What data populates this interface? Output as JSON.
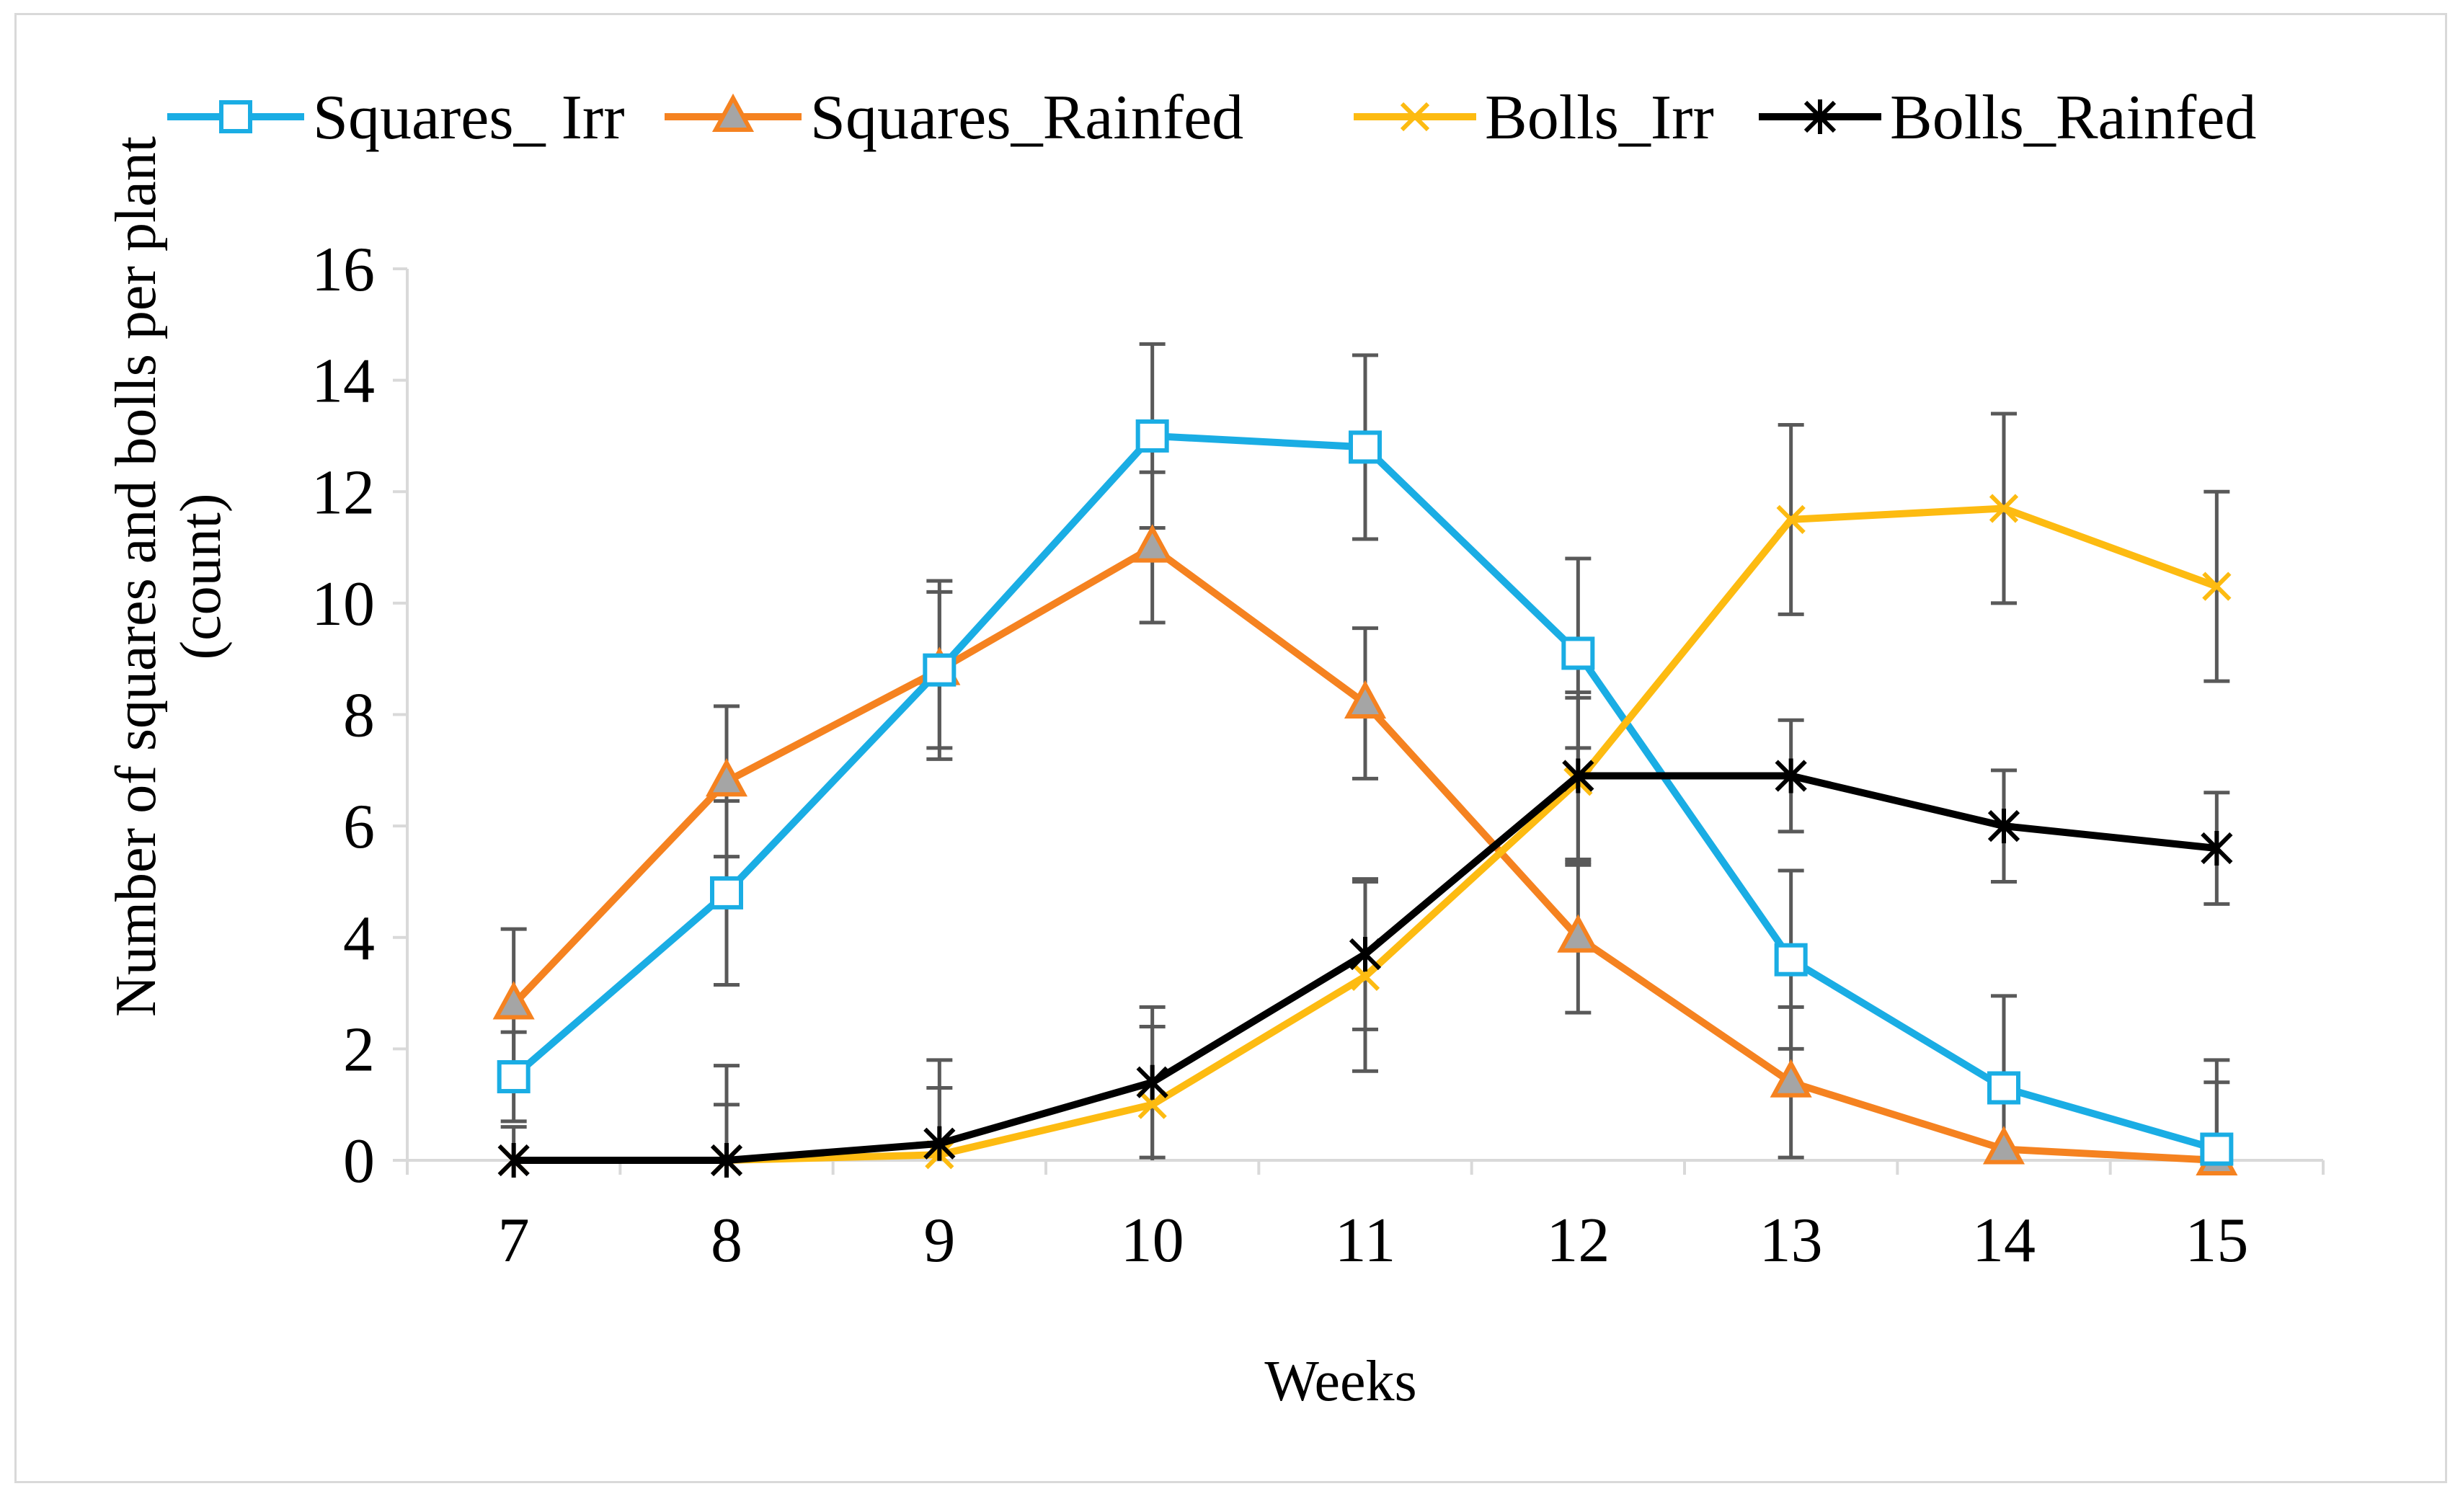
{
  "chart_data": {
    "type": "line",
    "title": "",
    "xlabel": "Weeks",
    "ylabel_line1": "Number of squares and bolls per plant",
    "ylabel_line2": "(count)",
    "x": [
      7,
      8,
      9,
      10,
      11,
      12,
      13,
      14,
      15
    ],
    "ylim": [
      0,
      16
    ],
    "yticks": [
      0,
      2,
      4,
      6,
      8,
      10,
      12,
      14,
      16
    ],
    "grid": false,
    "legend_position": "top",
    "series": [
      {
        "name": "Squares_ Irr",
        "color": "#1AADE4",
        "marker": "square-open",
        "values": [
          1.5,
          4.8,
          8.8,
          13.0,
          12.8,
          9.1,
          3.6,
          1.3,
          0.2
        ],
        "errors": [
          0.8,
          1.65,
          1.6,
          1.65,
          1.65,
          1.7,
          1.6,
          1.65,
          1.6
        ]
      },
      {
        "name": "Squares_Rainfed",
        "color": "#F58220",
        "marker": "triangle-grey",
        "values": [
          2.8,
          6.8,
          8.8,
          11.0,
          8.2,
          4.0,
          1.4,
          0.2,
          0.0
        ],
        "errors": [
          1.35,
          1.35,
          1.4,
          1.35,
          1.35,
          1.35,
          1.35,
          1.0,
          1.4
        ]
      },
      {
        "name": "Bolls_Irr",
        "color": "#FDBB11",
        "marker": "x",
        "values": [
          0.0,
          0.0,
          0.1,
          1.0,
          3.3,
          6.8,
          11.5,
          11.7,
          10.3
        ],
        "errors": [
          0.0,
          1.0,
          1.2,
          1.4,
          1.7,
          1.5,
          1.7,
          1.7,
          1.7
        ]
      },
      {
        "name": "Bolls_Rainfed",
        "color": "#000000",
        "marker": "star",
        "values": [
          0.0,
          0.0,
          0.3,
          1.4,
          3.7,
          6.9,
          6.9,
          6.0,
          5.6
        ],
        "errors": [
          0.6,
          1.7,
          1.5,
          1.35,
          1.35,
          1.5,
          1.0,
          1.0,
          1.0
        ]
      }
    ]
  }
}
